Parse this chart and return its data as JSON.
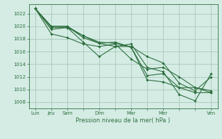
{
  "background_color": "#d4ece4",
  "plot_bg_color": "#d4ece4",
  "grid_color": "#a8c8b8",
  "line_color": "#2d6e3e",
  "marker_color": "#2d6e3e",
  "xlabel": "Pression niveau de la mer( hPa )",
  "xlabel_fontsize": 6.0,
  "xlabel_color": "#2d6e3e",
  "ylim": [
    1007,
    1023.5
  ],
  "yticks": [
    1008,
    1010,
    1012,
    1014,
    1016,
    1018,
    1020,
    1022
  ],
  "ytick_fontsize": 5.0,
  "xtick_fontsize": 5.0,
  "xtick_labels": [
    "Lun",
    "Jeu",
    "Sam",
    "",
    "Dim",
    "",
    "Mar",
    "",
    "Mer",
    "",
    "",
    "Ven"
  ],
  "xtick_positions": [
    0,
    1,
    2,
    3,
    4,
    5,
    6,
    7,
    8,
    9,
    10,
    11
  ],
  "xlim": [
    -0.4,
    11.4
  ],
  "series": [
    [
      1022.8,
      1020.0,
      1020.0,
      1018.2,
      1017.3,
      1016.8,
      1016.8,
      1015.2,
      1014.2,
      1011.0,
      1009.8,
      1012.0
    ],
    [
      1022.8,
      1019.5,
      1019.8,
      1017.5,
      1015.2,
      1016.8,
      1017.2,
      1013.5,
      1012.8,
      1009.2,
      1008.2,
      1012.5
    ],
    [
      1022.8,
      1018.8,
      1018.2,
      1017.2,
      1016.8,
      1017.2,
      1014.8,
      1013.2,
      1013.5,
      1012.0,
      1010.3,
      1009.5
    ],
    [
      1022.8,
      1019.8,
      1019.8,
      1018.5,
      1017.3,
      1017.5,
      1016.7,
      1012.2,
      1012.5,
      1010.3,
      1009.5,
      1009.5
    ],
    [
      1022.8,
      1020.0,
      1020.0,
      1018.5,
      1017.5,
      1017.3,
      1016.7,
      1011.5,
      1011.2,
      1010.3,
      1010.3,
      1009.8
    ]
  ],
  "line_width": 0.8,
  "marker_size": 1.8,
  "spine_color": "#2d6e3e",
  "tick_color": "#2d6e3e"
}
